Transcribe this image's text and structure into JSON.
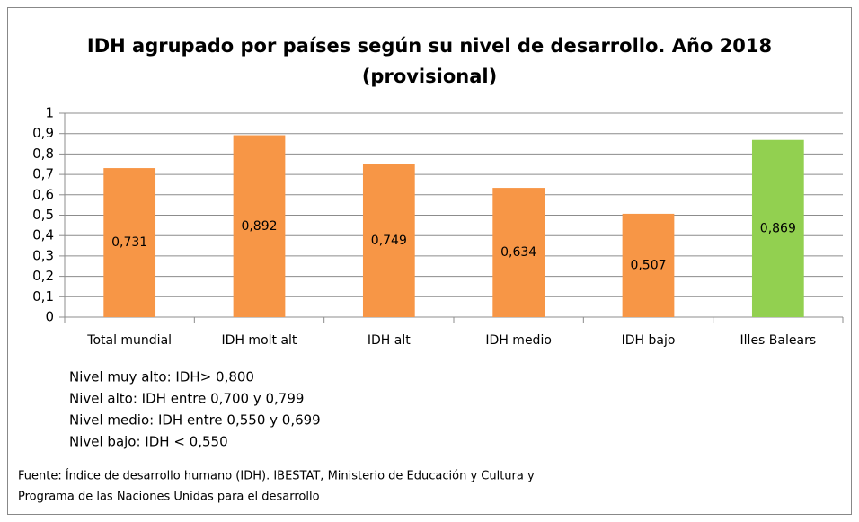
{
  "chart_data": {
    "type": "bar",
    "title": [
      "IDH agrupado por países según su nivel de desarrollo. Año 2018",
      "(provisional)"
    ],
    "categories": [
      "Total mundial",
      "IDH molt alt",
      "IDH alt",
      "IDH medio",
      "IDH bajo",
      "Illes Balears"
    ],
    "values": [
      0.731,
      0.892,
      0.749,
      0.634,
      0.507,
      0.869
    ],
    "value_labels": [
      "0,731",
      "0,892",
      "0,749",
      "0,634",
      "0,507",
      "0,869"
    ],
    "colors": [
      "#f79646",
      "#f79646",
      "#f79646",
      "#f79646",
      "#f79646",
      "#92d050"
    ],
    "ylim": [
      0,
      1
    ],
    "yticks": [
      0,
      {
        "value": 0.1,
        "label": "0,1"
      },
      {
        "value": 0.2,
        "label": "0,2"
      },
      {
        "value": 0.3,
        "label": "0,3"
      },
      {
        "value": 0.4,
        "label": "0,4"
      },
      {
        "value": 0.5,
        "label": "0,5"
      },
      {
        "value": 0.6,
        "label": "0,6"
      },
      {
        "value": 0.7,
        "label": "0,7"
      },
      {
        "value": 0.8,
        "label": "0,8"
      },
      {
        "value": 0.9,
        "label": "0,9"
      },
      1
    ],
    "grid": true,
    "notes": [
      "Nivel muy alto: IDH> 0,800",
      "Nivel  alto: IDH entre 0,700 y 0,799",
      "Nivel medio: IDH entre 0,550 y 0,699",
      "Nivel bajo: IDH < 0,550"
    ],
    "source": [
      "Fuente: Índice de desarrollo humano (IDH). IBESTAT, Ministerio de Educación y Cultura y",
      "Programa de las Naciones Unidas para el desarrollo"
    ]
  }
}
